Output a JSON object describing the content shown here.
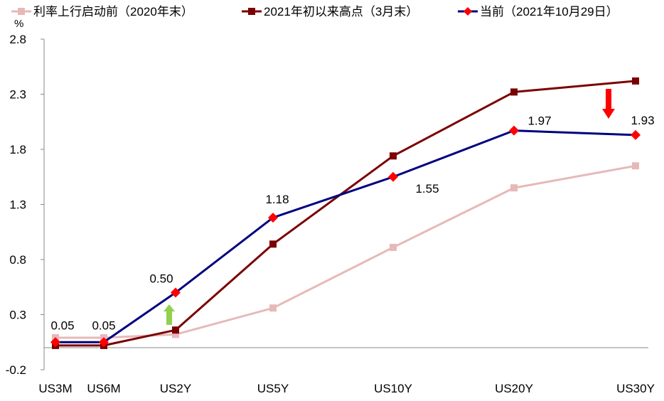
{
  "chart_data": {
    "type": "line",
    "unit": "%",
    "categories": [
      "US3M",
      "US6M",
      "US2Y",
      "US5Y",
      "US10Y",
      "US20Y",
      "US30Y"
    ],
    "ylim": [
      -0.2,
      2.8
    ],
    "yticks": [
      "2.8",
      "2.3",
      "1.8",
      "1.3",
      "0.8",
      "0.3",
      "-0.2"
    ],
    "grid": false,
    "legend_position": "top",
    "series": [
      {
        "name": "利率上行启动前（2020年末）",
        "color": "#E6B9B8",
        "marker": "square",
        "values": [
          0.09,
          0.09,
          0.12,
          0.36,
          0.91,
          1.45,
          1.65
        ]
      },
      {
        "name": "2021年初以来高点（3月末）",
        "color": "#7B0000",
        "marker": "square",
        "values": [
          0.02,
          0.02,
          0.16,
          0.94,
          1.74,
          2.32,
          2.42
        ]
      },
      {
        "name": "当前（2021年10月29日）",
        "color": "#00007F",
        "markerColor": "#FF0000",
        "marker": "diamond",
        "values": [
          0.05,
          0.05,
          0.5,
          1.18,
          1.55,
          1.97,
          1.93
        ],
        "labels": [
          "0.05",
          "0.05",
          "0.50",
          "1.18",
          "1.55",
          "1.97",
          "1.93"
        ]
      }
    ],
    "annotations": [
      {
        "type": "arrow-up",
        "color": "#92D050",
        "at": "US2Y"
      },
      {
        "type": "arrow-down",
        "color": "#FF0000",
        "at": "US30Y"
      }
    ]
  }
}
